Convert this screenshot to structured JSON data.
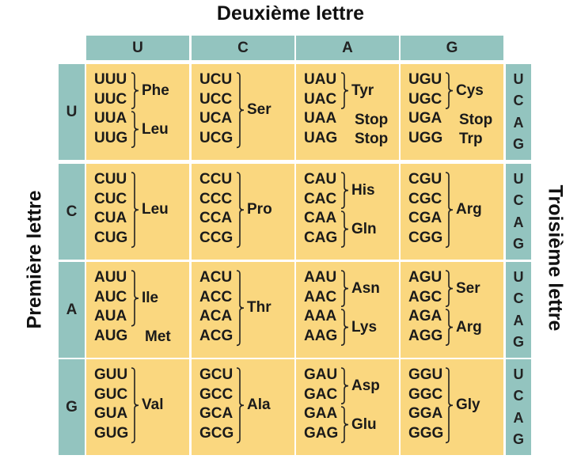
{
  "titles": {
    "top": "Deuxième lettre",
    "left": "Première lettre",
    "right": "Troisième lettre"
  },
  "columns": [
    "U",
    "C",
    "A",
    "G"
  ],
  "rows": [
    {
      "label": "U",
      "third": [
        "U",
        "C",
        "A",
        "G"
      ],
      "cells": [
        {
          "codons": [
            "UUU",
            "UUC",
            "UUA",
            "UUG"
          ],
          "groups": [
            {
              "start": 0,
              "end": 1,
              "aa": "Phe"
            },
            {
              "start": 2,
              "end": 3,
              "aa": "Leu"
            }
          ]
        },
        {
          "codons": [
            "UCU",
            "UCC",
            "UCA",
            "UCG"
          ],
          "groups": [
            {
              "start": 0,
              "end": 3,
              "aa": "Ser"
            }
          ]
        },
        {
          "codons": [
            "UAU",
            "UAC",
            "UAA",
            "UAG"
          ],
          "groups": [
            {
              "start": 0,
              "end": 1,
              "aa": "Tyr"
            },
            {
              "start": 2,
              "end": 2,
              "aa": "Stop",
              "nobrace": true
            },
            {
              "start": 3,
              "end": 3,
              "aa": "Stop",
              "nobrace": true
            }
          ]
        },
        {
          "codons": [
            "UGU",
            "UGC",
            "UGA",
            "UGG"
          ],
          "groups": [
            {
              "start": 0,
              "end": 1,
              "aa": "Cys"
            },
            {
              "start": 2,
              "end": 2,
              "aa": "Stop",
              "nobrace": true
            },
            {
              "start": 3,
              "end": 3,
              "aa": "Trp",
              "nobrace": true
            }
          ]
        }
      ]
    },
    {
      "label": "C",
      "third": [
        "U",
        "C",
        "A",
        "G"
      ],
      "cells": [
        {
          "codons": [
            "CUU",
            "CUC",
            "CUA",
            "CUG"
          ],
          "groups": [
            {
              "start": 0,
              "end": 3,
              "aa": "Leu"
            }
          ]
        },
        {
          "codons": [
            "CCU",
            "CCC",
            "CCA",
            "CCG"
          ],
          "groups": [
            {
              "start": 0,
              "end": 3,
              "aa": "Pro"
            }
          ]
        },
        {
          "codons": [
            "CAU",
            "CAC",
            "CAA",
            "CAG"
          ],
          "groups": [
            {
              "start": 0,
              "end": 1,
              "aa": "His"
            },
            {
              "start": 2,
              "end": 3,
              "aa": "Gln"
            }
          ]
        },
        {
          "codons": [
            "CGU",
            "CGC",
            "CGA",
            "CGG"
          ],
          "groups": [
            {
              "start": 0,
              "end": 3,
              "aa": "Arg"
            }
          ]
        }
      ]
    },
    {
      "label": "A",
      "third": [
        "U",
        "C",
        "A",
        "G"
      ],
      "cells": [
        {
          "codons": [
            "AUU",
            "AUC",
            "AUA",
            "AUG"
          ],
          "groups": [
            {
              "start": 0,
              "end": 2,
              "aa": "Ile"
            },
            {
              "start": 3,
              "end": 3,
              "aa": "Met",
              "nobrace": true
            }
          ]
        },
        {
          "codons": [
            "ACU",
            "ACC",
            "ACA",
            "ACG"
          ],
          "groups": [
            {
              "start": 0,
              "end": 3,
              "aa": "Thr"
            }
          ]
        },
        {
          "codons": [
            "AAU",
            "AAC",
            "AAA",
            "AAG"
          ],
          "groups": [
            {
              "start": 0,
              "end": 1,
              "aa": "Asn"
            },
            {
              "start": 2,
              "end": 3,
              "aa": "Lys"
            }
          ]
        },
        {
          "codons": [
            "AGU",
            "AGC",
            "AGA",
            "AGG"
          ],
          "groups": [
            {
              "start": 0,
              "end": 1,
              "aa": "Ser"
            },
            {
              "start": 2,
              "end": 3,
              "aa": "Arg"
            }
          ]
        }
      ]
    },
    {
      "label": "G",
      "third": [
        "U",
        "C",
        "A",
        "G"
      ],
      "cells": [
        {
          "codons": [
            "GUU",
            "GUC",
            "GUA",
            "GUG"
          ],
          "groups": [
            {
              "start": 0,
              "end": 3,
              "aa": "Val"
            }
          ]
        },
        {
          "codons": [
            "GCU",
            "GCC",
            "GCA",
            "GCG"
          ],
          "groups": [
            {
              "start": 0,
              "end": 3,
              "aa": "Ala"
            }
          ]
        },
        {
          "codons": [
            "GAU",
            "GAC",
            "GAA",
            "GAG"
          ],
          "groups": [
            {
              "start": 0,
              "end": 1,
              "aa": "Asp"
            },
            {
              "start": 2,
              "end": 3,
              "aa": "Glu"
            }
          ]
        },
        {
          "codons": [
            "GGU",
            "GGC",
            "GGA",
            "GGG"
          ],
          "groups": [
            {
              "start": 0,
              "end": 3,
              "aa": "Gly"
            }
          ]
        }
      ]
    }
  ]
}
